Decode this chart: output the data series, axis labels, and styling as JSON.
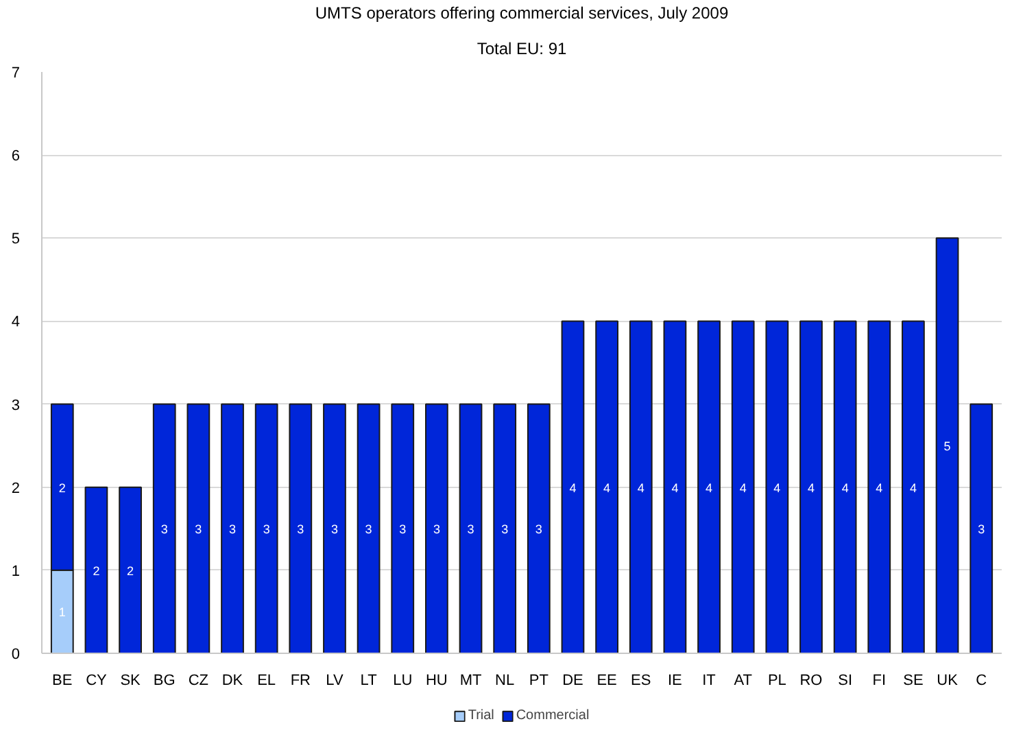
{
  "chart_data": {
    "type": "bar",
    "title": "UMTS operators offering commercial services, July 2009",
    "subtitle": "Total EU: 91",
    "categories": [
      "BE",
      "CY",
      "SK",
      "BG",
      "CZ",
      "DK",
      "EL",
      "FR",
      "LV",
      "LT",
      "LU",
      "HU",
      "MT",
      "NL",
      "PT",
      "DE",
      "EE",
      "ES",
      "IE",
      "IT",
      "AT",
      "PL",
      "RO",
      "SI",
      "FI",
      "SE",
      "UK",
      "C"
    ],
    "series": [
      {
        "name": "Trial",
        "color": "#a6cdfa",
        "values": [
          1,
          null,
          null,
          null,
          null,
          null,
          null,
          null,
          null,
          null,
          null,
          null,
          null,
          null,
          null,
          null,
          null,
          null,
          null,
          null,
          null,
          null,
          null,
          null,
          null,
          null,
          null,
          null
        ]
      },
      {
        "name": "Commercial",
        "color": "#0026d9",
        "values": [
          2,
          2,
          2,
          3,
          3,
          3,
          3,
          3,
          3,
          3,
          3,
          3,
          3,
          3,
          3,
          4,
          4,
          4,
          4,
          4,
          4,
          4,
          4,
          4,
          4,
          4,
          5,
          3
        ]
      }
    ],
    "stacked": true,
    "data_labels": true,
    "ylim": [
      0,
      7
    ],
    "yticks": [
      0,
      1,
      2,
      3,
      4,
      5,
      6,
      7
    ],
    "grid": "y",
    "legend": "bottom"
  }
}
